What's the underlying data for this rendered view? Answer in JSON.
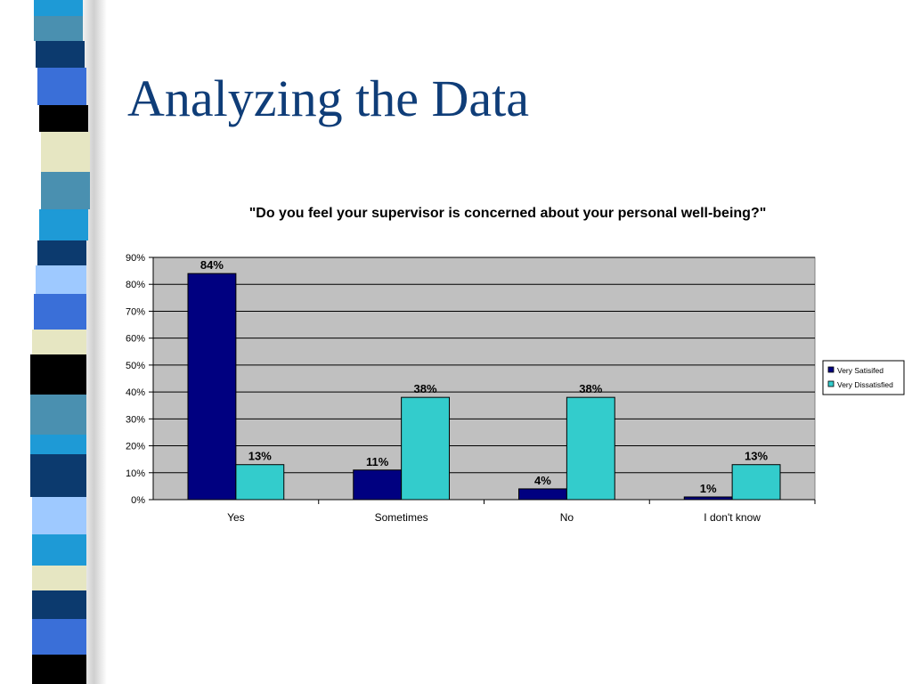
{
  "slide": {
    "title": "Analyzing the Data"
  },
  "colors": {
    "title": "#0f3d78",
    "series": [
      "#000080",
      "#33cccc"
    ],
    "plot_background": "#c0c0c0"
  },
  "chart_data": {
    "type": "bar",
    "title": "\"Do you feel your supervisor is concerned about your personal well-being?\"",
    "xlabel": "",
    "ylabel": "",
    "categories": [
      "Yes",
      "Sometimes",
      "No",
      "I don't know"
    ],
    "series": [
      {
        "name": "Very Satisifed",
        "values": [
          84,
          11,
          4,
          1
        ],
        "labels": [
          "84%",
          "11%",
          "4%",
          "1%"
        ]
      },
      {
        "name": "Very Dissatisfied",
        "values": [
          13,
          38,
          38,
          13
        ],
        "labels": [
          "13%",
          "38%",
          "38%",
          "13%"
        ]
      }
    ],
    "ylim": [
      0,
      90
    ],
    "yticks": [
      "0%",
      "10%",
      "20%",
      "30%",
      "40%",
      "50%",
      "60%",
      "70%",
      "80%",
      "90%"
    ],
    "grid": true,
    "legend_position": "right"
  }
}
